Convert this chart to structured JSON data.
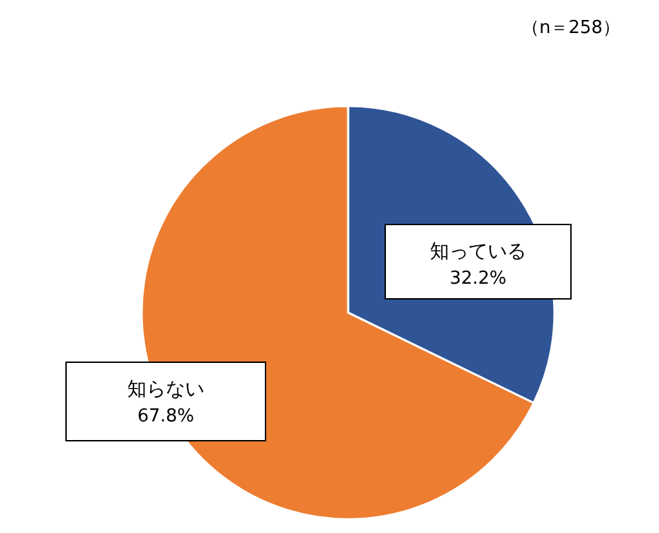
{
  "chart_data": {
    "type": "pie",
    "categories": [
      "知っている",
      "知らない"
    ],
    "values": [
      32.2,
      67.8
    ],
    "colors": [
      "#2f5597",
      "#ed7d31"
    ],
    "value_labels": [
      "32.2%",
      "67.8%"
    ],
    "annotations": [
      "（n＝258）"
    ]
  }
}
